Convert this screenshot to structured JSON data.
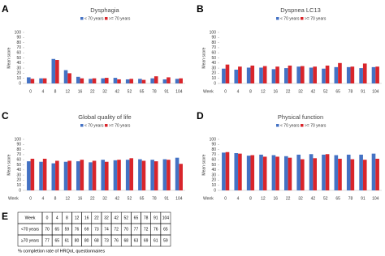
{
  "chart_data": [
    {
      "type": "bar",
      "panel": "A",
      "title": "Dysphagia",
      "y_label": "Mean score",
      "categories": [
        "0",
        "4",
        "8",
        "12",
        "16",
        "22",
        "32",
        "42",
        "52",
        "65",
        "78",
        "91",
        "104"
      ],
      "series": [
        {
          "name": "< 70 years",
          "color": "#4472c4",
          "values": [
            12,
            10,
            48,
            26,
            13,
            9,
            10,
            11,
            8,
            9,
            10,
            8,
            9
          ]
        },
        {
          "name": ">= 70 years",
          "color": "#d9252b",
          "values": [
            9,
            10,
            46,
            20,
            10,
            10,
            11,
            8,
            9,
            7,
            14,
            12,
            10
          ]
        }
      ],
      "ylim": [
        0,
        100
      ],
      "yticks": [
        0,
        10,
        20,
        30,
        40,
        50,
        60,
        70,
        80,
        90,
        100
      ]
    },
    {
      "type": "bar",
      "panel": "B",
      "title": "Dyspnea LC13",
      "y_label": "Mean score",
      "x_label": "Week",
      "categories": [
        "0",
        "4",
        "8",
        "12",
        "16",
        "22",
        "32",
        "42",
        "52",
        "65",
        "78",
        "91",
        "104"
      ],
      "series": [
        {
          "name": "< 70 years",
          "color": "#4472c4",
          "values": [
            29,
            27,
            31,
            31,
            28,
            30,
            33,
            31,
            29,
            32,
            32,
            30,
            32
          ]
        },
        {
          "name": ">= 70 years",
          "color": "#d9252b",
          "values": [
            37,
            33,
            35,
            34,
            33,
            35,
            34,
            33,
            35,
            40,
            33,
            39,
            33
          ]
        }
      ],
      "ylim": [
        0,
        100
      ],
      "yticks": [
        0,
        10,
        20,
        30,
        40,
        50,
        60,
        70,
        80,
        90,
        100
      ]
    },
    {
      "type": "bar",
      "panel": "C",
      "title": "Global quality of life",
      "y_label": "Mean score",
      "x_label": "Week",
      "categories": [
        "0",
        "4",
        "8",
        "12",
        "16",
        "22",
        "32",
        "42",
        "52",
        "65",
        "78",
        "91",
        "104"
      ],
      "series": [
        {
          "name": "< 70 years",
          "color": "#4472c4",
          "values": [
            57,
            56,
            53,
            56,
            57,
            55,
            60,
            59,
            60,
            61,
            60,
            61,
            64
          ]
        },
        {
          "name": ">= 70 years",
          "color": "#d9252b",
          "values": [
            62,
            62,
            58,
            58,
            60,
            58,
            56,
            60,
            63,
            58,
            57,
            60,
            52
          ]
        }
      ],
      "ylim": [
        0,
        100
      ],
      "yticks": [
        0,
        10,
        20,
        30,
        40,
        50,
        60,
        70,
        80,
        90,
        100
      ]
    },
    {
      "type": "bar",
      "panel": "D",
      "title": "Physical function",
      "y_label": "Mean score",
      "x_label": "Week",
      "categories": [
        "0",
        "4",
        "8",
        "12",
        "16",
        "22",
        "32",
        "42",
        "52",
        "65",
        "78",
        "91",
        "104"
      ],
      "series": [
        {
          "name": "< 70 years",
          "color": "#4472c4",
          "values": [
            74,
            73,
            68,
            70,
            69,
            67,
            70,
            71,
            70,
            69,
            70,
            70,
            72
          ]
        },
        {
          "name": ">= 70 years",
          "color": "#d9252b",
          "values": [
            75,
            72,
            69,
            66,
            66,
            64,
            61,
            63,
            71,
            62,
            61,
            60,
            62
          ]
        }
      ],
      "ylim": [
        0,
        100
      ],
      "yticks": [
        0,
        10,
        20,
        30,
        40,
        50,
        60,
        70,
        80,
        90,
        100
      ]
    }
  ],
  "table": {
    "panel": "E",
    "header": [
      "Week",
      "0",
      "4",
      "8",
      "12",
      "16",
      "22",
      "32",
      "42",
      "52",
      "65",
      "78",
      "91",
      "104"
    ],
    "rows": [
      [
        "<70 years",
        "70",
        "65",
        "59",
        "76",
        "69",
        "73",
        "74",
        "72",
        "70",
        "77",
        "72",
        "76",
        "65"
      ],
      [
        "≥70 years",
        "77",
        "65",
        "61",
        "80",
        "80",
        "68",
        "73",
        "76",
        "68",
        "63",
        "69",
        "61",
        "59"
      ]
    ],
    "caption": "% completion rate of HRQoL questionnaires"
  }
}
